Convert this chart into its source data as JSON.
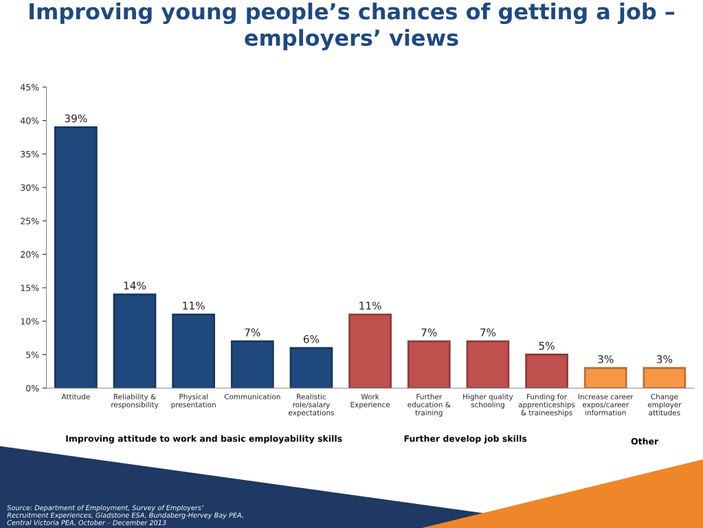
{
  "chart_data": {
    "type": "bar",
    "title": "Improving young people’s chances of getting a job –\nemployers’ views",
    "categories": [
      "Attitude",
      "Reliability &\nresponsibility",
      "Physical\npresentation",
      "Communication",
      "Realistic\nrole/salary\nexpectations",
      "Work\nExperience",
      "Further\neducation &\ntraining",
      "Higher quality\nschooling",
      "Funding for\napprenticeships\n& traineeships",
      "Increase career\nexpos/career\ninformation",
      "Change\nemployer\nattitudes"
    ],
    "values": [
      39,
      14,
      11,
      7,
      6,
      11,
      7,
      7,
      5,
      3,
      3
    ],
    "colors": [
      "#1f497d",
      "#1f497d",
      "#1f497d",
      "#1f497d",
      "#1f497d",
      "#c0504d",
      "#c0504d",
      "#c0504d",
      "#c0504d",
      "#f79646",
      "#f79646"
    ],
    "value_labels": [
      "39%",
      "14%",
      "11%",
      "7%",
      "6%",
      "11%",
      "7%",
      "7%",
      "5%",
      "3%",
      "3%"
    ],
    "ylim": [
      0,
      45
    ],
    "yticks": [
      {
        "value": 0,
        "label": "0%"
      },
      {
        "value": 5,
        "label": "5%"
      },
      {
        "value": 10,
        "label": "10%"
      },
      {
        "value": 15,
        "label": "15%"
      },
      {
        "value": 20,
        "label": "20%"
      },
      {
        "value": 25,
        "label": "25%"
      },
      {
        "value": 30,
        "label": "30%"
      },
      {
        "value": 35,
        "label": "35%"
      },
      {
        "value": 40,
        "label": "40%"
      },
      {
        "value": 45,
        "label": "45%"
      }
    ],
    "grid": false,
    "legend": false,
    "annotations": [
      "Improving attitude to work and basic employability skills",
      "Further develop job skills",
      "Other",
      "Source: Department of Employment, Survey of Employers’\nRecruitment Experiences, Gladstone ESA, Bundaberg-Hervey Bay PEA,\nCentral Victoria PEA, October – December 2013"
    ]
  }
}
